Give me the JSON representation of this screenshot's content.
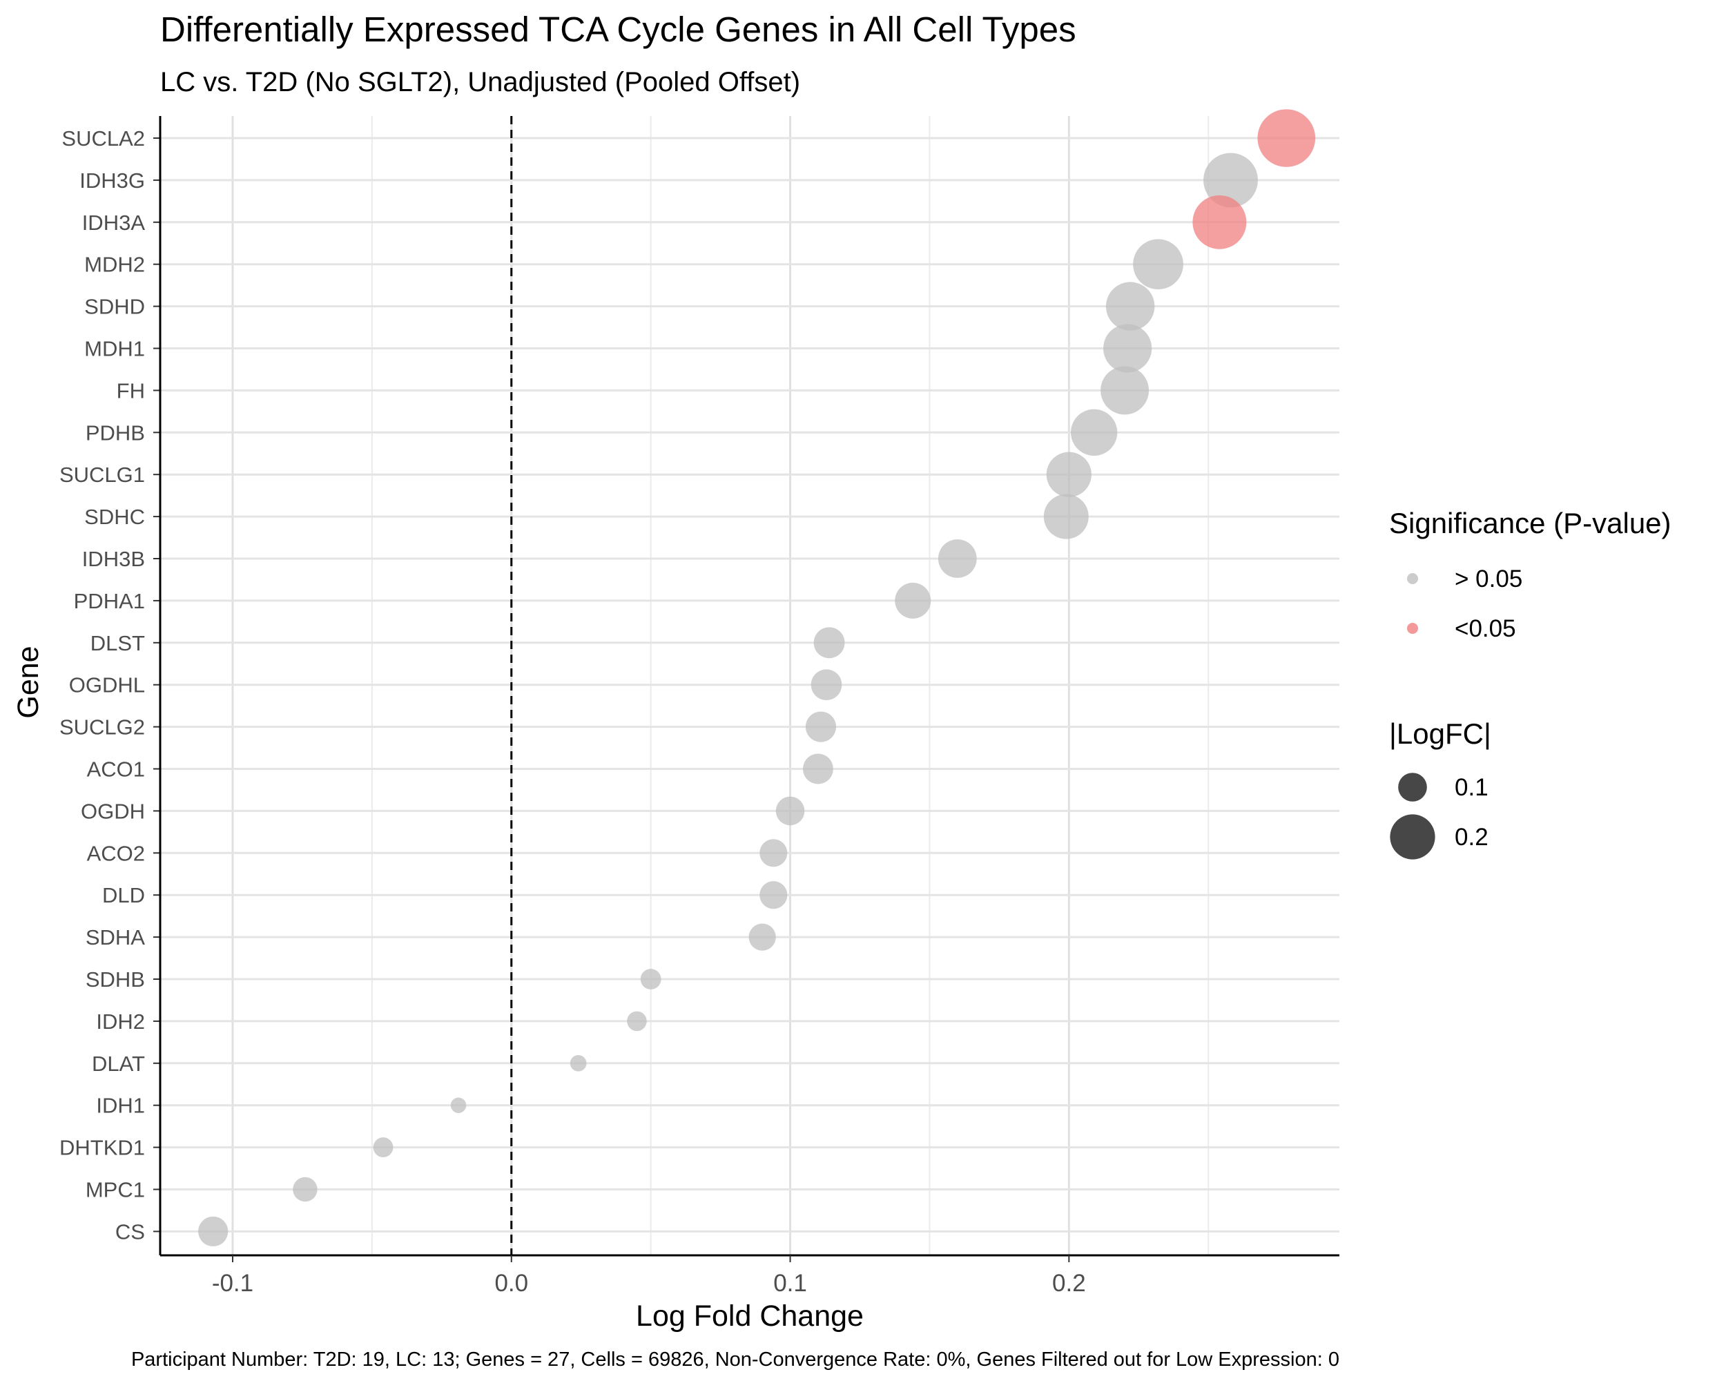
{
  "chart_data": {
    "type": "scatter",
    "title": "Differentially Expressed TCA Cycle Genes in All Cell Types",
    "subtitle": "LC vs. T2D (No SGLT2), Unadjusted (Pooled Offset)",
    "xlabel": "Log Fold Change",
    "ylabel": "Gene",
    "caption": "Participant Number: T2D: 19, LC: 13; Genes = 27, Cells = 69826, Non-Convergence Rate: 0%, Genes Filtered out for Low Expression: 0",
    "xlim": [
      -0.126,
      0.297
    ],
    "xticks": [
      -0.1,
      0.0,
      0.1,
      0.2
    ],
    "xtick_labels": [
      "-0.1",
      "0.0",
      "0.1",
      "0.2"
    ],
    "reference_line": {
      "x": 0,
      "style": "dashed"
    },
    "grid": true,
    "legend_position": "right",
    "points": [
      {
        "gene": "SUCLA2",
        "logfc": 0.278,
        "significance": "<0.05"
      },
      {
        "gene": "IDH3G",
        "logfc": 0.258,
        "significance": "> 0.05"
      },
      {
        "gene": "IDH3A",
        "logfc": 0.254,
        "significance": "<0.05"
      },
      {
        "gene": "MDH2",
        "logfc": 0.232,
        "significance": "> 0.05"
      },
      {
        "gene": "SDHD",
        "logfc": 0.222,
        "significance": "> 0.05"
      },
      {
        "gene": "MDH1",
        "logfc": 0.221,
        "significance": "> 0.05"
      },
      {
        "gene": "FH",
        "logfc": 0.22,
        "significance": "> 0.05"
      },
      {
        "gene": "PDHB",
        "logfc": 0.209,
        "significance": "> 0.05"
      },
      {
        "gene": "SUCLG1",
        "logfc": 0.2,
        "significance": "> 0.05"
      },
      {
        "gene": "SDHC",
        "logfc": 0.199,
        "significance": "> 0.05"
      },
      {
        "gene": "IDH3B",
        "logfc": 0.16,
        "significance": "> 0.05"
      },
      {
        "gene": "PDHA1",
        "logfc": 0.144,
        "significance": "> 0.05"
      },
      {
        "gene": "DLST",
        "logfc": 0.114,
        "significance": "> 0.05"
      },
      {
        "gene": "OGDHL",
        "logfc": 0.113,
        "significance": "> 0.05"
      },
      {
        "gene": "SUCLG2",
        "logfc": 0.111,
        "significance": "> 0.05"
      },
      {
        "gene": "ACO1",
        "logfc": 0.11,
        "significance": "> 0.05"
      },
      {
        "gene": "OGDH",
        "logfc": 0.1,
        "significance": "> 0.05"
      },
      {
        "gene": "ACO2",
        "logfc": 0.094,
        "significance": "> 0.05"
      },
      {
        "gene": "DLD",
        "logfc": 0.094,
        "significance": "> 0.05"
      },
      {
        "gene": "SDHA",
        "logfc": 0.09,
        "significance": "> 0.05"
      },
      {
        "gene": "SDHB",
        "logfc": 0.05,
        "significance": "> 0.05"
      },
      {
        "gene": "IDH2",
        "logfc": 0.045,
        "significance": "> 0.05"
      },
      {
        "gene": "DLAT",
        "logfc": 0.024,
        "significance": "> 0.05"
      },
      {
        "gene": "IDH1",
        "logfc": -0.019,
        "significance": "> 0.05"
      },
      {
        "gene": "DHTKD1",
        "logfc": -0.046,
        "significance": "> 0.05"
      },
      {
        "gene": "MPC1",
        "logfc": -0.074,
        "significance": "> 0.05"
      },
      {
        "gene": "CS",
        "logfc": -0.107,
        "significance": "> 0.05"
      }
    ],
    "legends": {
      "color": {
        "title": "Significance (P-value)",
        "entries": [
          {
            "label": "> 0.05",
            "color": "#bfbfbf"
          },
          {
            "label": "<0.05",
            "color": "#f08080"
          }
        ]
      },
      "size": {
        "title": "|LogFC|",
        "entries": [
          {
            "label": "0.1",
            "value": 0.1
          },
          {
            "label": "0.2",
            "value": 0.2
          }
        ]
      }
    }
  }
}
